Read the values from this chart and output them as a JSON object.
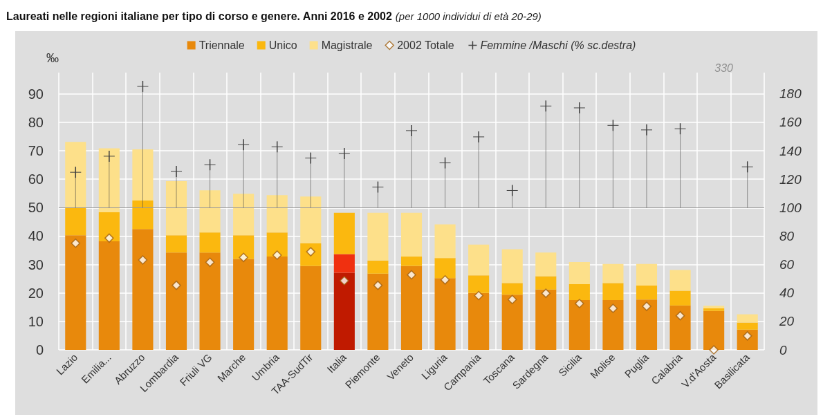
{
  "chart_data": {
    "type": "bar",
    "title": "Laureati nelle regioni italiane per tipo di corso e genere. Anni 2016 e 2002",
    "subtitle": "(per 1000 individui di età 20-29)",
    "ylabel": "‰",
    "categories": [
      "Lazio",
      "Emilia...",
      "Abruzzo",
      "Lombardia",
      "Friuli VG",
      "Marche",
      "Umbria",
      "TAA-SudTir",
      "Italia",
      "Piemonte",
      "Veneto",
      "Liguria",
      "Campania",
      "Toscana",
      "Sardegna",
      "Sicilia",
      "Molise",
      "Puglia",
      "Calabria",
      "V.d'Aosta",
      "Basilicata"
    ],
    "stacked": true,
    "series": [
      {
        "name": "Triennale",
        "color": "#e8890c",
        "colors": [
          "#e8890c",
          "#e8890c",
          "#e8890c",
          "#e8890c",
          "#e8890c",
          "#e8890c",
          "#e8890c",
          "#e8890c",
          "#c01a00",
          "#e8890c",
          "#e8890c",
          "#e8890c",
          "#e8890c",
          "#e8890c",
          "#e8890c",
          "#e8890c",
          "#e8890c",
          "#e8890c",
          "#e8890c",
          "#e8890c",
          "#e8890c"
        ],
        "values": [
          40.3,
          38.2,
          42.5,
          34.2,
          34.2,
          32.0,
          32.8,
          29.5,
          27.1,
          26.8,
          29.5,
          25.2,
          20.0,
          19.4,
          21.2,
          17.5,
          17.5,
          17.7,
          15.6,
          13.7,
          7.1
        ]
      },
      {
        "name": "Unico",
        "color": "#fbb80f",
        "colors": [
          "#fbb80f",
          "#fbb80f",
          "#fbb80f",
          "#fbb80f",
          "#fbb80f",
          "#fbb80f",
          "#fbb80f",
          "#fbb80f",
          "#f03010",
          "#fbb80f",
          "#fbb80f",
          "#fbb80f",
          "#fbb80f",
          "#fbb80f",
          "#fbb80f",
          "#fbb80f",
          "#fbb80f",
          "#fbb80f",
          "#fbb80f",
          "#fbb80f",
          "#fbb80f"
        ],
        "values": [
          9.7,
          10.2,
          10.0,
          6.1,
          7.1,
          8.3,
          8.5,
          8.0,
          6.6,
          4.6,
          3.3,
          7.1,
          6.2,
          4.1,
          4.7,
          5.6,
          6.0,
          4.9,
          5.2,
          0.9,
          2.5
        ]
      },
      {
        "name": "Magistrale",
        "color": "#fde08a",
        "colors": [
          "#fde08a",
          "#fde08a",
          "#fde08a",
          "#fde08a",
          "#fde08a",
          "#fde08a",
          "#fde08a",
          "#fde08a",
          "#fbb80f",
          "#fde08a",
          "#fde08a",
          "#fde08a",
          "#fde08a",
          "#fde08a",
          "#fde08a",
          "#fde08a",
          "#fde08a",
          "#fde08a",
          "#fde08a",
          "#fde08a",
          "#fde08a"
        ],
        "values": [
          23.1,
          22.5,
          18.0,
          19.0,
          14.8,
          14.6,
          13.1,
          16.4,
          14.5,
          16.8,
          15.4,
          11.8,
          10.8,
          11.9,
          8.3,
          7.8,
          6.7,
          7.6,
          7.3,
          0.9,
          2.9
        ]
      },
      {
        "name": "2002 Totale",
        "type": "scatter",
        "marker": "diamond",
        "color": "#ffffff",
        "values": [
          37.5,
          39.3,
          31.6,
          22.7,
          30.8,
          32.5,
          33.3,
          34.5,
          24.3,
          22.7,
          26.4,
          24.6,
          19.1,
          17.7,
          19.9,
          16.3,
          14.6,
          15.3,
          12.0,
          0,
          4.9
        ]
      },
      {
        "name": "Femmine /Maschi (% sc.destra)",
        "type": "scatter",
        "axis": "y2",
        "marker": "cross",
        "color": "#404040",
        "values": [
          124.9,
          136.2,
          185.3,
          125.5,
          130.2,
          144.3,
          142.8,
          134.9,
          138.1,
          114.5,
          154.2,
          131.5,
          149.8,
          112.1,
          171.5,
          170.2,
          157.9,
          154.7,
          155.5,
          null,
          128.7
        ],
        "errors": [
          [
            100,
            124.9
          ],
          [
            100,
            136.2
          ],
          [
            100,
            185.3
          ],
          [
            100,
            125.5
          ],
          [
            100,
            130.2
          ],
          [
            100,
            144.3
          ],
          [
            100,
            142.8
          ],
          [
            100,
            134.9
          ],
          [
            100,
            138.1
          ],
          [
            100,
            114.5
          ],
          [
            100,
            154.2
          ],
          [
            100,
            131.5
          ],
          [
            100,
            149.8
          ],
          [
            100,
            112.1
          ],
          [
            100,
            171.5
          ],
          [
            100,
            170.2
          ],
          [
            100,
            157.9
          ],
          [
            100,
            154.7
          ],
          [
            100,
            155.5
          ],
          null,
          [
            100,
            128.7
          ]
        ]
      }
    ],
    "ylim": [
      0,
      97.5
    ],
    "yticks": [
      0,
      10,
      20,
      30,
      40,
      50,
      60,
      70,
      80,
      90
    ],
    "y2lim": [
      0,
      195
    ],
    "y2ticks": [
      0,
      20,
      40,
      60,
      80,
      100,
      120,
      140,
      160,
      180
    ],
    "ref_lines": [
      {
        "axis": "y2",
        "value": 100,
        "color": "#9a9a9a"
      }
    ],
    "annotations": [
      "330"
    ],
    "grid": true,
    "legend": "top"
  }
}
